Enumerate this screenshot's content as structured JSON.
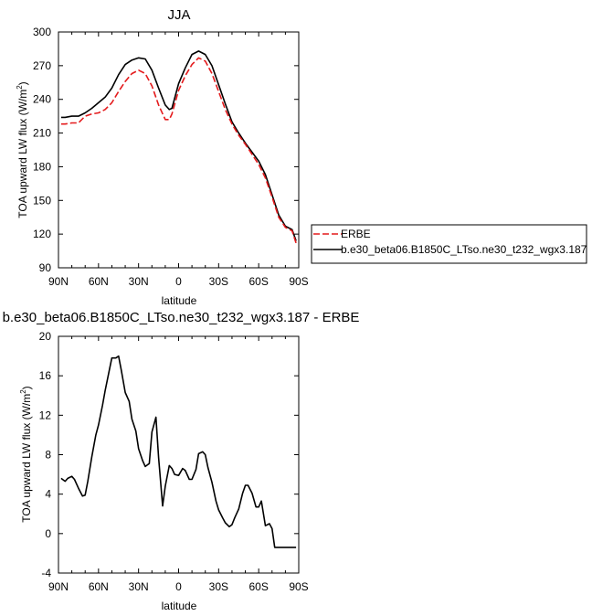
{
  "chart_data": [
    {
      "type": "line",
      "title": "JJA",
      "xlabel": "latitude",
      "ylabel": "TOA upward LW flux (W/m",
      "ylabel_sup": "2",
      "ylabel_close": ")",
      "xlim": [
        90,
        -90
      ],
      "ylim": [
        90,
        300
      ],
      "xticks": [
        90,
        60,
        30,
        0,
        -30,
        -60,
        -90
      ],
      "xtick_labels": [
        "90N",
        "60N",
        "30N",
        "0",
        "30S",
        "60S",
        "90S"
      ],
      "yticks": [
        90,
        120,
        150,
        180,
        210,
        240,
        270,
        300
      ],
      "ytick_labels": [
        "90",
        "120",
        "150",
        "180",
        "210",
        "240",
        "270",
        "300"
      ],
      "legend": {
        "placement": "right",
        "entries": [
          {
            "label": "ERBE",
            "color": "#e41a1c",
            "dash": "dashed"
          },
          {
            "label": "b.e30_beta06.B1850C_LTso.ne30_t232_wgx3.187",
            "color": "#000000",
            "dash": "solid"
          }
        ]
      },
      "series": [
        {
          "name": "b.e30_beta06.B1850C_LTso.ne30_t232_wgx3.187",
          "color": "#000000",
          "dash": "solid",
          "x": [
            88,
            85,
            80,
            75,
            70,
            65,
            60,
            55,
            50,
            45,
            40,
            35,
            30,
            25,
            20,
            15,
            10,
            7,
            5,
            0,
            -5,
            -10,
            -15,
            -20,
            -25,
            -30,
            -35,
            -40,
            -45,
            -50,
            -55,
            -60,
            -65,
            -70,
            -75,
            -80,
            -85,
            -88
          ],
          "y": [
            224,
            224,
            225,
            225,
            228,
            232,
            237,
            242,
            250,
            262,
            271,
            275,
            277,
            276,
            266,
            250,
            235,
            231,
            232,
            254,
            268,
            280,
            283,
            280,
            270,
            253,
            236,
            220,
            210,
            201,
            193,
            185,
            173,
            155,
            137,
            127,
            124,
            114
          ]
        },
        {
          "name": "ERBE",
          "color": "#e41a1c",
          "dash": "dashed",
          "x": [
            88,
            85,
            80,
            75,
            70,
            65,
            60,
            55,
            50,
            45,
            40,
            35,
            30,
            25,
            20,
            15,
            10,
            7,
            5,
            0,
            -5,
            -10,
            -15,
            -20,
            -25,
            -30,
            -35,
            -40,
            -45,
            -50,
            -55,
            -60,
            -65,
            -70,
            -75,
            -80,
            -85,
            -88
          ],
          "y": [
            218,
            218,
            219,
            219,
            225,
            227,
            228,
            231,
            237,
            247,
            256,
            263,
            266,
            263,
            252,
            235,
            222,
            222,
            227,
            248,
            261,
            271,
            277,
            274,
            263,
            247,
            231,
            218,
            208,
            200,
            191,
            182,
            170,
            153,
            135,
            126,
            123,
            112
          ]
        }
      ]
    },
    {
      "type": "line",
      "title": "b.e30_beta06.B1850C_LTso.ne30_t232_wgx3.187 - ERBE",
      "xlabel": "latitude",
      "ylabel": "TOA upward LW flux (W/m",
      "ylabel_sup": "2",
      "ylabel_close": ")",
      "xlim": [
        90,
        -90
      ],
      "ylim": [
        -4,
        20
      ],
      "xticks": [
        90,
        60,
        30,
        0,
        -30,
        -60,
        -90
      ],
      "xtick_labels": [
        "90N",
        "60N",
        "30N",
        "0",
        "30S",
        "60S",
        "90S"
      ],
      "yticks": [
        -4,
        0,
        4,
        8,
        12,
        16,
        20
      ],
      "ytick_labels": [
        "-4",
        "0",
        "4",
        "8",
        "12",
        "16",
        "20"
      ],
      "series": [
        {
          "color": "#000000",
          "dash": "solid",
          "x": [
            88,
            85,
            83,
            80,
            78,
            75,
            72,
            70,
            68,
            65,
            62,
            60,
            57,
            55,
            52,
            50,
            47,
            45,
            43,
            40,
            37,
            35,
            32,
            30,
            27,
            25,
            22,
            20,
            17,
            15,
            12,
            10,
            7,
            5,
            3,
            0,
            -3,
            -5,
            -8,
            -10,
            -13,
            -15,
            -18,
            -20,
            -22,
            -25,
            -28,
            -30,
            -33,
            -35,
            -38,
            -40,
            -42,
            -45,
            -48,
            -50,
            -52,
            -55,
            -58,
            -60,
            -62,
            -65,
            -68,
            -70,
            -72,
            -75,
            -77,
            -80,
            -82,
            -85,
            -88
          ],
          "y": [
            5.6,
            5.3,
            5.6,
            5.8,
            5.5,
            4.6,
            3.8,
            3.9,
            5.3,
            7.8,
            10.0,
            11.0,
            13.0,
            14.5,
            16.5,
            17.8,
            17.8,
            18.0,
            16.6,
            14.3,
            13.4,
            11.6,
            10.4,
            8.6,
            7.4,
            6.8,
            7.1,
            10.3,
            11.8,
            7.7,
            2.8,
            4.8,
            6.9,
            6.6,
            6.0,
            5.9,
            6.6,
            6.4,
            5.5,
            5.5,
            6.5,
            8.1,
            8.3,
            8.0,
            6.7,
            5.2,
            3.3,
            2.4,
            1.6,
            1.1,
            0.7,
            0.9,
            1.6,
            2.5,
            4.1,
            4.9,
            4.9,
            4.1,
            2.7,
            2.7,
            3.3,
            0.8,
            1.0,
            0.5,
            -1.4,
            -1.4,
            -1.4,
            -1.4,
            -1.4,
            -1.4,
            -1.4
          ]
        }
      ]
    }
  ]
}
